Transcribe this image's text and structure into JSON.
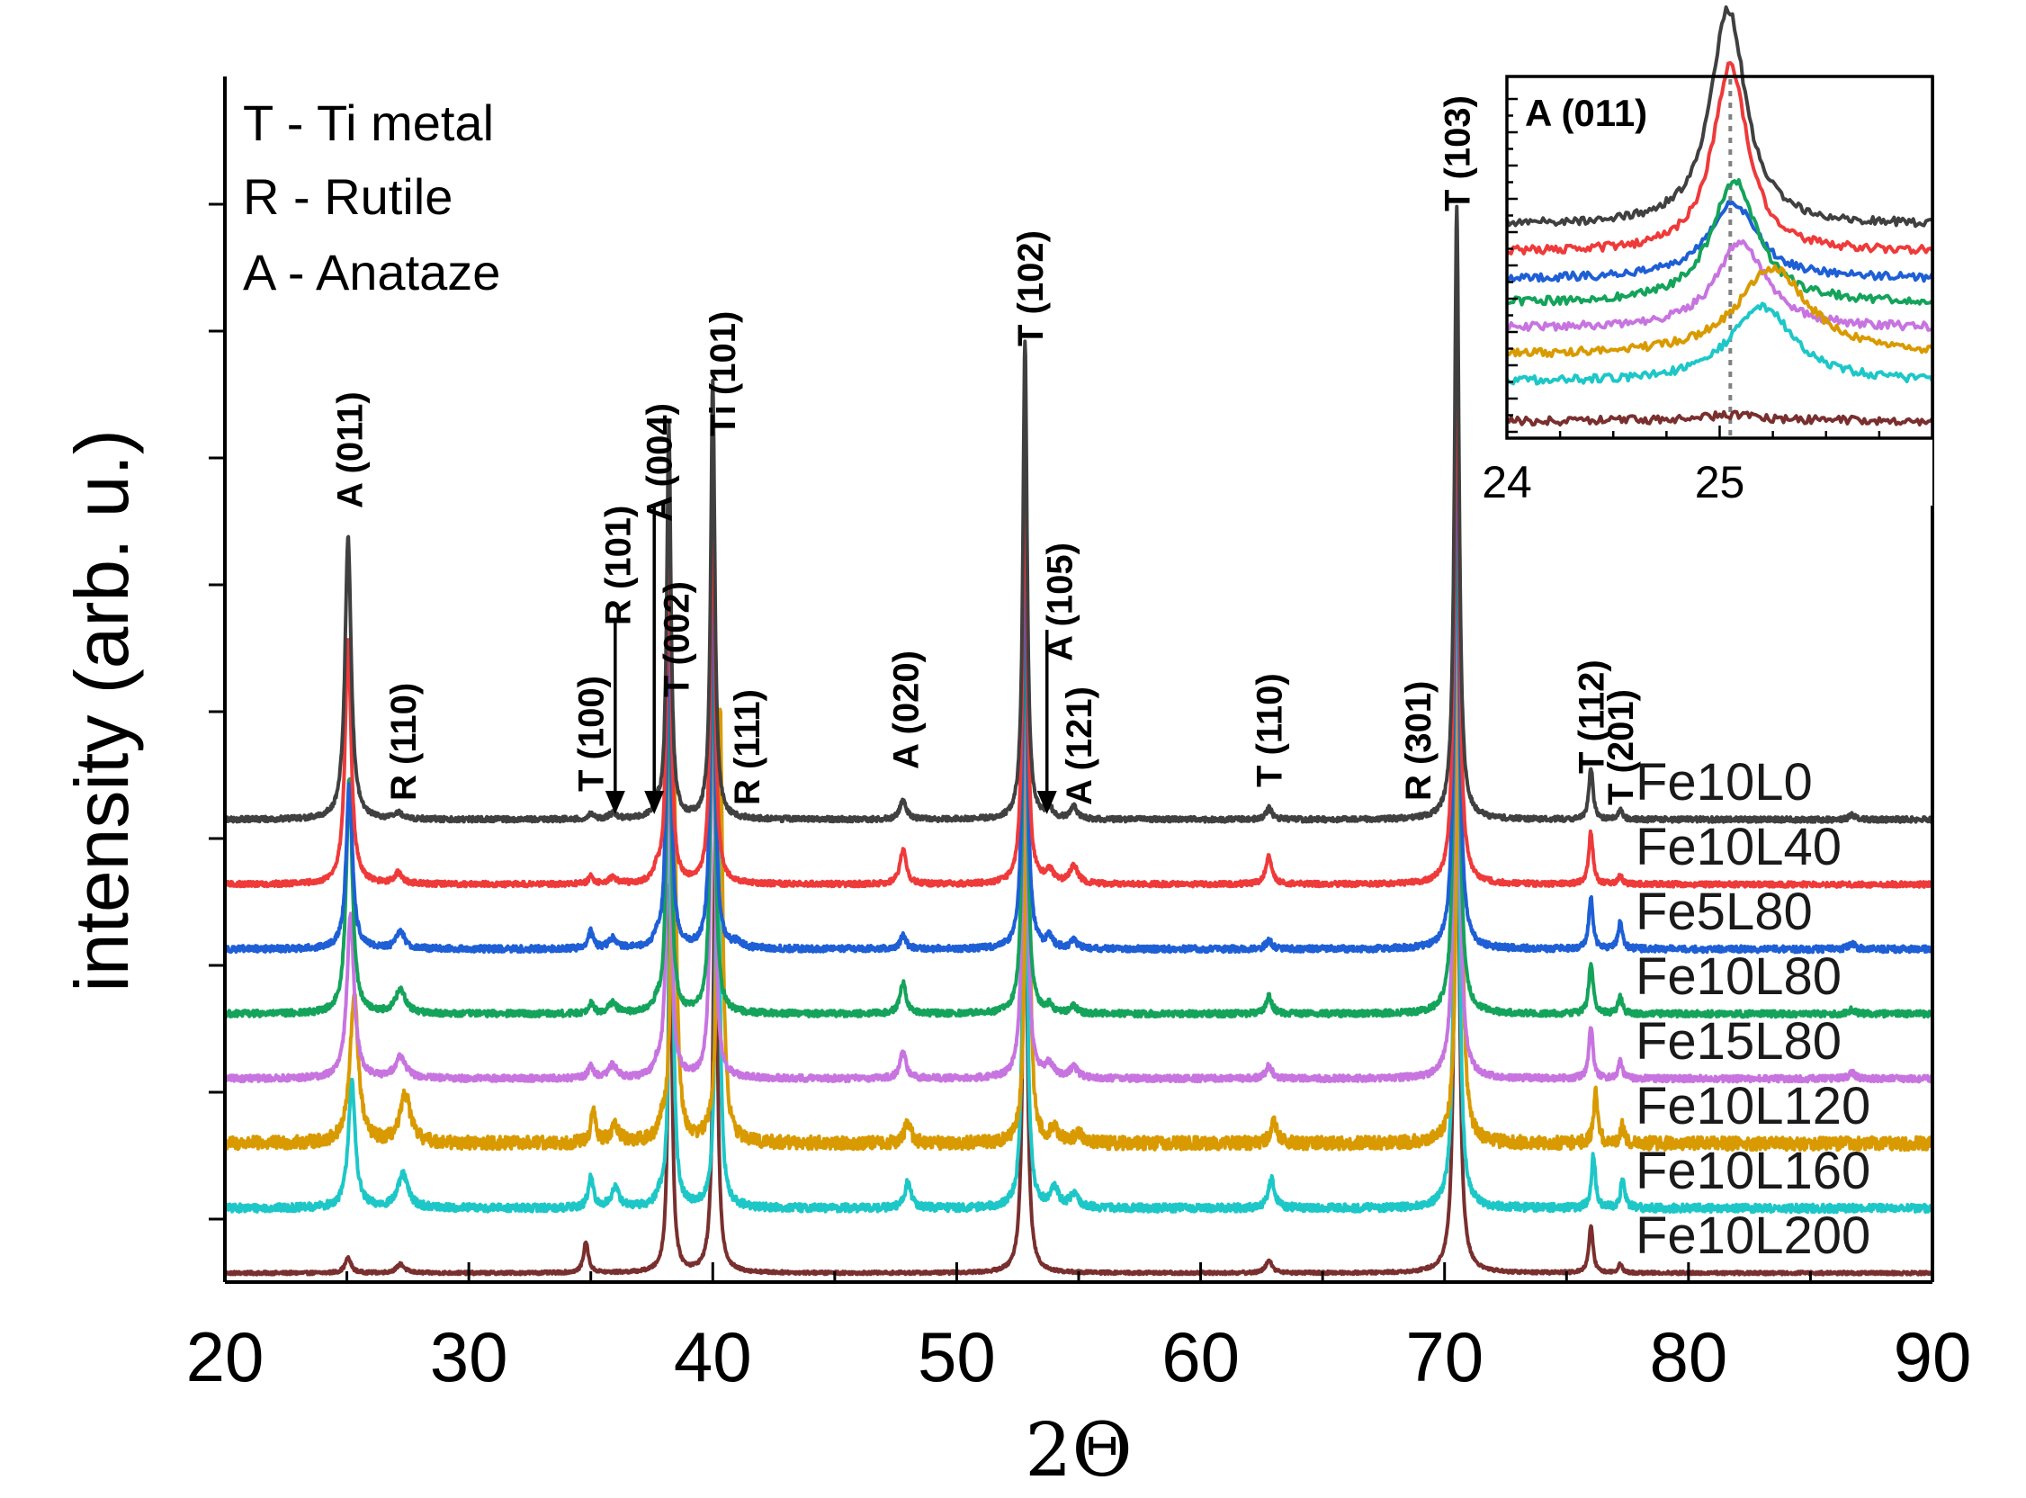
{
  "chart_data": [
    {
      "type": "line",
      "xlabel": "2Θ",
      "ylabel": "intensity (arb. u.)",
      "xlim": [
        20,
        90
      ],
      "xticks": [
        20,
        30,
        40,
        50,
        60,
        70,
        80,
        90
      ],
      "y_tick_labels_shown": false,
      "grid": false,
      "legend_text": [
        "T - Ti metal",
        "R - Rutile",
        "A - Anataze"
      ],
      "legend_placement": "top-left",
      "series": [
        {
          "name": "Fe10L0",
          "color": "#404040",
          "offset": 7,
          "noise": 0.01,
          "peaks": [
            [
              25.05,
              3.25,
              0.15
            ],
            [
              27.1,
              0.07,
              0.2
            ],
            [
              35.0,
              0.07,
              0.12
            ],
            [
              35.9,
              0.06,
              0.2
            ],
            [
              37.7,
              0.12,
              0.15
            ],
            [
              38.2,
              4.5,
              0.1
            ],
            [
              40.0,
              5.0,
              0.1
            ],
            [
              47.8,
              0.23,
              0.15
            ],
            [
              52.8,
              5.5,
              0.1
            ],
            [
              53.8,
              0.12,
              0.15
            ],
            [
              54.8,
              0.14,
              0.15
            ],
            [
              62.8,
              0.13,
              0.15
            ],
            [
              70.5,
              7.0,
              0.11
            ],
            [
              76.0,
              0.6,
              0.1
            ],
            [
              77.2,
              0.12,
              0.1
            ],
            [
              86.7,
              0.05,
              0.15
            ]
          ]
        },
        {
          "name": "Fe10L40",
          "color": "#ef3a3a",
          "offset": 6,
          "noise": 0.01,
          "peaks": [
            [
              25.05,
              2.8,
              0.15
            ],
            [
              27.1,
              0.12,
              0.2
            ],
            [
              35.0,
              0.08,
              0.12
            ],
            [
              35.9,
              0.07,
              0.2
            ],
            [
              37.7,
              0.12,
              0.15
            ],
            [
              38.2,
              4.5,
              0.1
            ],
            [
              40.0,
              5.0,
              0.1
            ],
            [
              47.8,
              0.4,
              0.15
            ],
            [
              52.8,
              5.5,
              0.1
            ],
            [
              53.8,
              0.14,
              0.2
            ],
            [
              54.8,
              0.2,
              0.2
            ],
            [
              62.8,
              0.33,
              0.15
            ],
            [
              70.5,
              7.0,
              0.11
            ],
            [
              76.0,
              0.6,
              0.1
            ],
            [
              77.2,
              0.1,
              0.1
            ]
          ]
        },
        {
          "name": "Fe5L80",
          "color": "#1e5fd6",
          "offset": 5,
          "noise": 0.012,
          "peaks": [
            [
              25.1,
              1.9,
              0.15
            ],
            [
              27.2,
              0.2,
              0.2
            ],
            [
              35.0,
              0.2,
              0.12
            ],
            [
              35.9,
              0.12,
              0.2
            ],
            [
              37.7,
              0.08,
              0.15
            ],
            [
              38.2,
              4.5,
              0.1
            ],
            [
              40.0,
              5.0,
              0.1
            ],
            [
              41.0,
              0.06,
              0.2
            ],
            [
              47.8,
              0.15,
              0.15
            ],
            [
              52.8,
              5.5,
              0.1
            ],
            [
              53.8,
              0.12,
              0.15
            ],
            [
              54.8,
              0.1,
              0.15
            ],
            [
              62.8,
              0.1,
              0.15
            ],
            [
              70.5,
              7.0,
              0.11
            ],
            [
              76.0,
              0.6,
              0.1
            ],
            [
              77.2,
              0.3,
              0.1
            ],
            [
              86.7,
              0.07,
              0.15
            ]
          ]
        },
        {
          "name": "Fe10L80",
          "color": "#14a35a",
          "offset": 4,
          "noise": 0.012,
          "peaks": [
            [
              25.1,
              2.7,
              0.15
            ],
            [
              27.2,
              0.27,
              0.25
            ],
            [
              35.0,
              0.12,
              0.12
            ],
            [
              35.9,
              0.12,
              0.2
            ],
            [
              37.7,
              0.08,
              0.15
            ],
            [
              38.2,
              4.5,
              0.1
            ],
            [
              40.0,
              5.0,
              0.1
            ],
            [
              47.8,
              0.35,
              0.15
            ],
            [
              52.8,
              5.5,
              0.1
            ],
            [
              53.8,
              0.08,
              0.15
            ],
            [
              54.8,
              0.08,
              0.15
            ],
            [
              62.8,
              0.2,
              0.15
            ],
            [
              70.5,
              7.0,
              0.11
            ],
            [
              76.0,
              0.6,
              0.1
            ],
            [
              77.2,
              0.2,
              0.1
            ],
            [
              86.7,
              0.05,
              0.15
            ]
          ]
        },
        {
          "name": "Fe15L80",
          "color": "#c774e0",
          "offset": 3,
          "noise": 0.012,
          "peaks": [
            [
              25.15,
              1.9,
              0.17
            ],
            [
              27.2,
              0.25,
              0.25
            ],
            [
              35.0,
              0.15,
              0.12
            ],
            [
              35.9,
              0.15,
              0.2
            ],
            [
              37.7,
              0.12,
              0.15
            ],
            [
              38.2,
              4.5,
              0.1
            ],
            [
              40.0,
              5.0,
              0.1
            ],
            [
              47.8,
              0.3,
              0.15
            ],
            [
              52.8,
              5.5,
              0.1
            ],
            [
              53.8,
              0.15,
              0.2
            ],
            [
              54.8,
              0.12,
              0.2
            ],
            [
              62.8,
              0.15,
              0.15
            ],
            [
              70.5,
              7.0,
              0.11
            ],
            [
              76.0,
              0.6,
              0.1
            ],
            [
              77.2,
              0.2,
              0.1
            ],
            [
              86.7,
              0.07,
              0.15
            ]
          ]
        },
        {
          "name": "Fe10L120",
          "color": "#d99a00",
          "offset": 2,
          "noise": 0.025,
          "peaks": [
            [
              25.3,
              1.7,
              0.2
            ],
            [
              27.4,
              0.55,
              0.25
            ],
            [
              35.1,
              0.35,
              0.12
            ],
            [
              36.0,
              0.2,
              0.2
            ],
            [
              37.9,
              0.15,
              0.15
            ],
            [
              38.4,
              4.5,
              0.12
            ],
            [
              40.3,
              5.0,
              0.12
            ],
            [
              48.0,
              0.25,
              0.15
            ],
            [
              52.9,
              5.5,
              0.1
            ],
            [
              54.0,
              0.15,
              0.2
            ],
            [
              55.0,
              0.1,
              0.2
            ],
            [
              63.0,
              0.25,
              0.15
            ],
            [
              70.6,
              7.0,
              0.11
            ],
            [
              76.2,
              0.6,
              0.1
            ],
            [
              77.3,
              0.2,
              0.1
            ]
          ]
        },
        {
          "name": "Fe10L160",
          "color": "#1ec7c7",
          "offset": 1,
          "noise": 0.015,
          "peaks": [
            [
              25.2,
              1.45,
              0.17
            ],
            [
              27.3,
              0.38,
              0.25
            ],
            [
              35.0,
              0.35,
              0.12
            ],
            [
              36.0,
              0.22,
              0.2
            ],
            [
              37.8,
              0.1,
              0.15
            ],
            [
              38.3,
              4.5,
              0.1
            ],
            [
              40.2,
              5.0,
              0.1
            ],
            [
              48.0,
              0.3,
              0.15
            ],
            [
              52.8,
              5.5,
              0.1
            ],
            [
              54.0,
              0.22,
              0.2
            ],
            [
              54.8,
              0.15,
              0.2
            ],
            [
              62.9,
              0.35,
              0.15
            ],
            [
              70.5,
              7.0,
              0.11
            ],
            [
              76.1,
              0.6,
              0.1
            ],
            [
              77.3,
              0.35,
              0.1
            ]
          ]
        },
        {
          "name": "Fe10L200",
          "color": "#7a2f2f",
          "offset": 0,
          "noise": 0.006,
          "peaks": [
            [
              25.05,
              0.17,
              0.15
            ],
            [
              27.2,
              0.1,
              0.2
            ],
            [
              34.8,
              0.35,
              0.12
            ],
            [
              38.25,
              4.5,
              0.09
            ],
            [
              40.1,
              5.0,
              0.1
            ],
            [
              52.8,
              5.5,
              0.1
            ],
            [
              62.8,
              0.15,
              0.15
            ],
            [
              70.5,
              7.0,
              0.11
            ],
            [
              76.0,
              0.55,
              0.1
            ],
            [
              77.2,
              0.1,
              0.1
            ]
          ]
        }
      ],
      "annotations": [
        {
          "text": "A (011)",
          "x": 25.1
        },
        {
          "text": "R (110)",
          "x": 27.3
        },
        {
          "text": "T (100)",
          "x": 35.0
        },
        {
          "text": "R (101)",
          "x": 36.1
        },
        {
          "text": "A (004)",
          "x": 37.8
        },
        {
          "text": "T (002)",
          "x": 38.5
        },
        {
          "text": "Ti (101)",
          "x": 40.4
        },
        {
          "text": "R (111)",
          "x": 41.4
        },
        {
          "text": "A (020)",
          "x": 47.9
        },
        {
          "text": "T (102)",
          "x": 53.0
        },
        {
          "text": "A (105)",
          "x": 54.2
        },
        {
          "text": "A (121)",
          "x": 55.0
        },
        {
          "text": "T (110)",
          "x": 62.8
        },
        {
          "text": "R (301)",
          "x": 68.9
        },
        {
          "text": "T (103)",
          "x": 70.5
        },
        {
          "text": "T (112)",
          "x": 76.0
        },
        {
          "text": "T (201)",
          "x": 77.2
        }
      ],
      "arrows": [
        36.0,
        37.6,
        53.7
      ]
    },
    {
      "type": "line",
      "title": "A (011)",
      "xlim": [
        24,
        26
      ],
      "xticks": [
        24,
        25
      ],
      "reference_line_x": 25.05,
      "series_peaks": [
        {
          "name": "Fe10L0",
          "center": 25.04,
          "height": 1.85,
          "width": 0.1
        },
        {
          "name": "Fe10L40",
          "center": 25.05,
          "height": 1.6,
          "width": 0.1
        },
        {
          "name": "Fe5L80",
          "center": 25.06,
          "height": 0.65,
          "width": 0.14
        },
        {
          "name": "Fe10L80",
          "center": 25.07,
          "height": 1.05,
          "width": 0.13
        },
        {
          "name": "Fe15L80",
          "center": 25.1,
          "height": 0.75,
          "width": 0.14
        },
        {
          "name": "Fe10L120",
          "center": 25.25,
          "height": 0.75,
          "width": 0.2
        },
        {
          "name": "Fe10L160",
          "center": 25.2,
          "height": 0.65,
          "width": 0.18
        },
        {
          "name": "Fe10L200",
          "center": 25.05,
          "height": 0.05,
          "width": 0.2
        }
      ]
    }
  ]
}
